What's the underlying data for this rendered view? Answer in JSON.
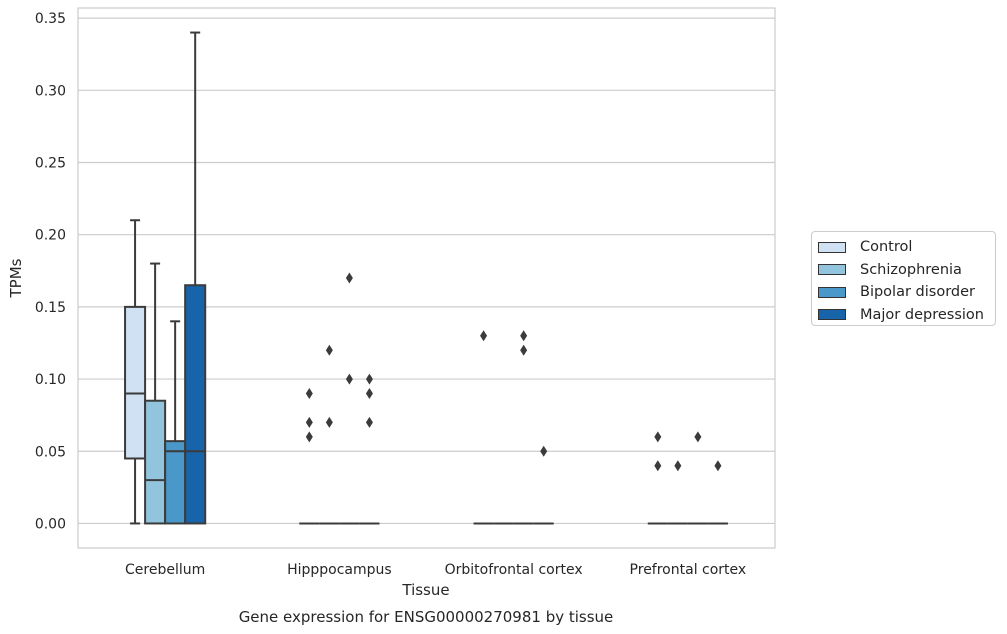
{
  "chart_data": {
    "type": "box",
    "title": "",
    "caption": "Gene expression for ENSG00000270981 by tissue",
    "xlabel": "Tissue",
    "ylabel": "TPMs",
    "ylim": [
      -0.017,
      0.357
    ],
    "yticks": [
      "0.00",
      "0.05",
      "0.10",
      "0.15",
      "0.20",
      "0.25",
      "0.30",
      "0.35"
    ],
    "ytick_values": [
      0,
      0.05,
      0.1,
      0.15,
      0.2,
      0.25,
      0.3,
      0.35
    ],
    "grid": true,
    "legend_position": "right",
    "categories": [
      "Cerebellum",
      "Hipppocampus",
      "Orbitofrontal cortex",
      "Prefrontal cortex"
    ],
    "series": [
      {
        "name": "Control",
        "color": "#cfe1f2",
        "boxes": [
          {
            "whislo": 0.0,
            "q1": 0.045,
            "median": 0.09,
            "q3": 0.15,
            "whishi": 0.21,
            "fliers": []
          },
          {
            "whislo": 0.0,
            "q1": 0.0,
            "median": 0.0,
            "q3": 0.0,
            "whishi": 0.0,
            "fliers": [
              0.06,
              0.07,
              0.09
            ]
          },
          {
            "whislo": 0.0,
            "q1": 0.0,
            "median": 0.0,
            "q3": 0.0,
            "whishi": 0.0,
            "fliers": [
              0.13
            ]
          },
          {
            "whislo": 0.0,
            "q1": 0.0,
            "median": 0.0,
            "q3": 0.0,
            "whishi": 0.0,
            "fliers": [
              0.04,
              0.06
            ]
          }
        ]
      },
      {
        "name": "Schizophrenia",
        "color": "#93c4de",
        "boxes": [
          {
            "whislo": 0.0,
            "q1": 0.0,
            "median": 0.03,
            "q3": 0.085,
            "whishi": 0.18,
            "fliers": []
          },
          {
            "whislo": 0.0,
            "q1": 0.0,
            "median": 0.0,
            "q3": 0.0,
            "whishi": 0.0,
            "fliers": [
              0.07,
              0.12
            ]
          },
          {
            "whislo": 0.0,
            "q1": 0.0,
            "median": 0.0,
            "q3": 0.0,
            "whishi": 0.0,
            "fliers": []
          },
          {
            "whislo": 0.0,
            "q1": 0.0,
            "median": 0.0,
            "q3": 0.0,
            "whishi": 0.0,
            "fliers": [
              0.04
            ]
          }
        ]
      },
      {
        "name": "Bipolar disorder",
        "color": "#4a98c9",
        "boxes": [
          {
            "whislo": 0.0,
            "q1": 0.0,
            "median": 0.05,
            "q3": 0.057,
            "whishi": 0.14,
            "fliers": []
          },
          {
            "whislo": 0.0,
            "q1": 0.0,
            "median": 0.0,
            "q3": 0.0,
            "whishi": 0.0,
            "fliers": [
              0.1,
              0.17
            ]
          },
          {
            "whislo": 0.0,
            "q1": 0.0,
            "median": 0.0,
            "q3": 0.0,
            "whishi": 0.0,
            "fliers": [
              0.12,
              0.13
            ]
          },
          {
            "whislo": 0.0,
            "q1": 0.0,
            "median": 0.0,
            "q3": 0.0,
            "whishi": 0.0,
            "fliers": [
              0.06
            ]
          }
        ]
      },
      {
        "name": "Major depression",
        "color": "#1764ab",
        "boxes": [
          {
            "whislo": 0.0,
            "q1": 0.0,
            "median": 0.05,
            "q3": 0.165,
            "whishi": 0.34,
            "fliers": []
          },
          {
            "whislo": 0.0,
            "q1": 0.0,
            "median": 0.0,
            "q3": 0.0,
            "whishi": 0.0,
            "fliers": [
              0.07,
              0.09,
              0.1
            ]
          },
          {
            "whislo": 0.0,
            "q1": 0.0,
            "median": 0.0,
            "q3": 0.0,
            "whishi": 0.0,
            "fliers": [
              0.05
            ]
          },
          {
            "whislo": 0.0,
            "q1": 0.0,
            "median": 0.0,
            "q3": 0.0,
            "whishi": 0.0,
            "fliers": [
              0.04
            ]
          }
        ]
      }
    ]
  }
}
